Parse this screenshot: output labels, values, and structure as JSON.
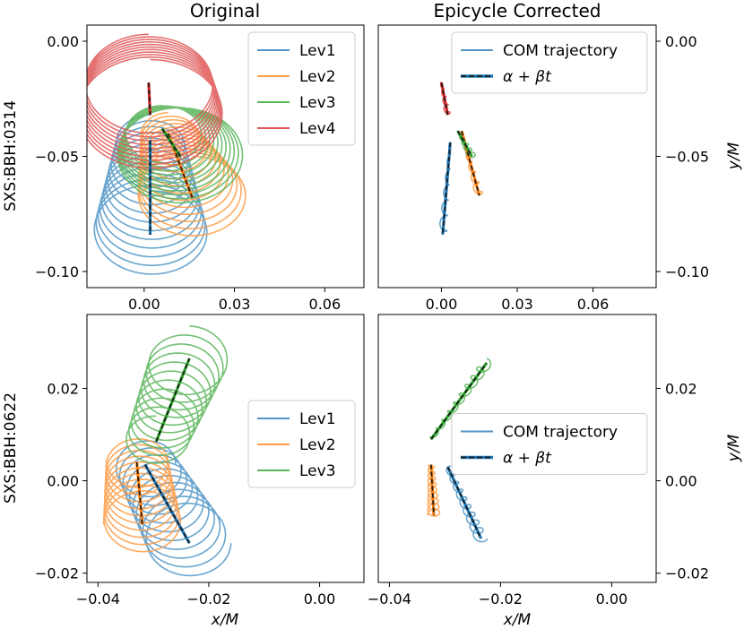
{
  "colors": {
    "lev1": "#1f77b4",
    "lev2": "#ff7f0e",
    "lev3": "#2ca02c",
    "lev4": "#d62728",
    "dash": "#1a1a1a"
  },
  "column_titles": [
    "Original",
    "Epicycle Corrected"
  ],
  "row_labels": [
    "SXS:BBH:0314",
    "SXS:BBH:0622"
  ],
  "chart_data": [
    {
      "id": "p00",
      "type": "line",
      "title": "Original",
      "ylabel": "SXS:BBH:0314",
      "xlabel": "",
      "xlim": [
        -0.019,
        0.073
      ],
      "ylim": [
        -0.107,
        0.007
      ],
      "xticks": [
        0.0,
        0.03,
        0.06
      ],
      "xtick_labels": [
        "0.00",
        "0.03",
        "0.06"
      ],
      "yticks": [
        0.0,
        -0.05,
        -0.1
      ],
      "ytick_labels": [
        "0.00",
        "−0.05",
        "−0.10"
      ],
      "ytick_side": "left",
      "legend": {
        "entries": [
          "Lev1",
          "Lev2",
          "Lev3",
          "Lev4"
        ],
        "placement": "upper-right",
        "style": "solid"
      },
      "series": [
        {
          "name": "Lev1",
          "color": "lev1",
          "kind": "loops",
          "start": [
            0.002,
            -0.043
          ],
          "end": [
            0.002,
            -0.084
          ],
          "r0": 0.011,
          "r1": 0.019,
          "turns": 13,
          "phase": 1.5708
        },
        {
          "name": "Lev2",
          "color": "lev2",
          "kind": "loops",
          "start": [
            0.008,
            -0.04
          ],
          "end": [
            0.016,
            -0.068
          ],
          "r0": 0.009,
          "r1": 0.018,
          "turns": 12,
          "phase": 1.5708
        },
        {
          "name": "Lev3",
          "color": "lev3",
          "kind": "loops",
          "start": [
            0.006,
            -0.04
          ],
          "end": [
            0.012,
            -0.05
          ],
          "r0": 0.012,
          "r1": 0.021,
          "turns": 11,
          "phase": 1.5708
        },
        {
          "name": "Lev4",
          "color": "lev4",
          "kind": "loops",
          "start": [
            0.0015,
            -0.018
          ],
          "end": [
            0.002,
            -0.032
          ],
          "r0": 0.021,
          "r1": 0.024,
          "turns": 10,
          "phase": 1.5708
        },
        {
          "name": "Lev1 fit",
          "color": "lev1",
          "kind": "fit",
          "points": [
            [
              0.002,
              -0.043
            ],
            [
              0.002,
              -0.084
            ]
          ]
        },
        {
          "name": "Lev2 fit",
          "color": "lev2",
          "kind": "fit",
          "points": [
            [
              0.008,
              -0.04
            ],
            [
              0.016,
              -0.068
            ]
          ]
        },
        {
          "name": "Lev3 fit",
          "color": "lev3",
          "kind": "fit",
          "points": [
            [
              0.006,
              -0.038
            ],
            [
              0.012,
              -0.05
            ]
          ]
        },
        {
          "name": "Lev4 fit",
          "color": "lev4",
          "kind": "fit",
          "points": [
            [
              0.0015,
              -0.018
            ],
            [
              0.002,
              -0.032
            ]
          ]
        }
      ]
    },
    {
      "id": "p01",
      "type": "line",
      "title": "Epicycle Corrected",
      "ylabel": "y/M",
      "xlabel": "",
      "xlim": [
        -0.025,
        0.085
      ],
      "ylim": [
        -0.107,
        0.007
      ],
      "xticks": [
        0.0,
        0.03,
        0.06
      ],
      "xtick_labels": [
        "0.00",
        "0.03",
        "0.06"
      ],
      "yticks": [
        0.0,
        -0.05,
        -0.1
      ],
      "ytick_labels": [
        "0.00",
        "−0.05",
        "−0.10"
      ],
      "ytick_side": "right",
      "legend": {
        "entries": [
          "COM trajectory",
          "α + βt"
        ],
        "placement": "upper-right",
        "style": "com"
      },
      "series": [
        {
          "name": "Lev1",
          "color": "lev1",
          "kind": "loops",
          "start": [
            0.0035,
            -0.044
          ],
          "end": [
            0.0005,
            -0.084
          ],
          "r0": 0.0003,
          "r1": 0.0016,
          "turns": 6,
          "phase": 1.5708
        },
        {
          "name": "Lev2",
          "color": "lev2",
          "kind": "loops",
          "start": [
            0.008,
            -0.04
          ],
          "end": [
            0.015,
            -0.067
          ],
          "r0": 0.0003,
          "r1": 0.0016,
          "turns": 6,
          "phase": 1.5708
        },
        {
          "name": "Lev3",
          "color": "lev3",
          "kind": "loops",
          "start": [
            0.0065,
            -0.039
          ],
          "end": [
            0.012,
            -0.05
          ],
          "r0": 0.0003,
          "r1": 0.0017,
          "turns": 5,
          "phase": 1.5708
        },
        {
          "name": "Lev4",
          "color": "lev4",
          "kind": "loops",
          "start": [
            0.0,
            -0.018
          ],
          "end": [
            0.0025,
            -0.032
          ],
          "r0": 0.0004,
          "r1": 0.0012,
          "turns": 4,
          "phase": 1.5708
        },
        {
          "name": "Lev1 fit",
          "color": "lev1",
          "kind": "fit",
          "points": [
            [
              0.0035,
              -0.044
            ],
            [
              0.0005,
              -0.084
            ]
          ]
        },
        {
          "name": "Lev2 fit",
          "color": "lev2",
          "kind": "fit",
          "points": [
            [
              0.008,
              -0.039
            ],
            [
              0.015,
              -0.067
            ]
          ]
        },
        {
          "name": "Lev3 fit",
          "color": "lev3",
          "kind": "fit",
          "points": [
            [
              0.0065,
              -0.039
            ],
            [
              0.012,
              -0.05
            ]
          ]
        },
        {
          "name": "Lev4 fit",
          "color": "lev4",
          "kind": "fit",
          "points": [
            [
              0.0,
              -0.018
            ],
            [
              0.0025,
              -0.032
            ]
          ]
        }
      ]
    },
    {
      "id": "p10",
      "type": "line",
      "title": "",
      "ylabel": "SXS:BBH:0622",
      "xlabel": "x/M",
      "xlim": [
        -0.042,
        0.008
      ],
      "ylim": [
        -0.022,
        0.036
      ],
      "xticks": [
        -0.04,
        -0.02,
        0.0
      ],
      "xtick_labels": [
        "−0.04",
        "−0.02",
        "0.00"
      ],
      "yticks": [
        0.02,
        0.0,
        -0.02
      ],
      "ytick_labels": [
        "0.02",
        "0.00",
        "−0.02"
      ],
      "ytick_side": "left",
      "legend": {
        "entries": [
          "Lev1",
          "Lev2",
          "Lev3"
        ],
        "placement": "center-right",
        "style": "solid"
      },
      "series": [
        {
          "name": "Lev1",
          "color": "lev1",
          "kind": "loops",
          "start": [
            -0.0315,
            0.0035
          ],
          "end": [
            -0.0235,
            -0.0135
          ],
          "r0": 0.0055,
          "r1": 0.0075,
          "turns": 10,
          "phase": 0.0
        },
        {
          "name": "Lev2",
          "color": "lev2",
          "kind": "loops",
          "start": [
            -0.033,
            0.0045
          ],
          "end": [
            -0.032,
            -0.0095
          ],
          "r0": 0.0055,
          "r1": 0.007,
          "turns": 10,
          "phase": 3.1416
        },
        {
          "name": "Lev3",
          "color": "lev3",
          "kind": "loops",
          "start": [
            -0.0295,
            0.0085
          ],
          "end": [
            -0.0235,
            0.0265
          ],
          "r0": 0.0055,
          "r1": 0.007,
          "turns": 10,
          "phase": 1.5708
        },
        {
          "name": "Lev1 fit",
          "color": "lev1",
          "kind": "fit",
          "points": [
            [
              -0.0315,
              0.0035
            ],
            [
              -0.0235,
              -0.0135
            ]
          ]
        },
        {
          "name": "Lev2 fit",
          "color": "lev2",
          "kind": "fit",
          "points": [
            [
              -0.033,
              0.004
            ],
            [
              -0.032,
              -0.0095
            ]
          ]
        },
        {
          "name": "Lev3 fit",
          "color": "lev3",
          "kind": "fit",
          "points": [
            [
              -0.0295,
              0.0085
            ],
            [
              -0.0235,
              0.0265
            ]
          ]
        }
      ]
    },
    {
      "id": "p11",
      "type": "line",
      "title": "",
      "ylabel": "y/M",
      "xlabel": "x/M",
      "xlim": [
        -0.042,
        0.008
      ],
      "ylim": [
        -0.022,
        0.036
      ],
      "xticks": [
        -0.04,
        -0.02,
        0.0
      ],
      "xtick_labels": [
        "−0.04",
        "−0.02",
        "0.00"
      ],
      "yticks": [
        0.02,
        0.0,
        -0.02
      ],
      "ytick_labels": [
        "0.02",
        "0.00",
        "−0.02"
      ],
      "ytick_side": "right",
      "legend": {
        "entries": [
          "COM trajectory",
          "α + βt"
        ],
        "placement": "center-right",
        "style": "com"
      },
      "series": [
        {
          "name": "Lev1",
          "color": "lev1",
          "kind": "loops",
          "start": [
            -0.0295,
            0.003
          ],
          "end": [
            -0.0235,
            -0.0125
          ],
          "r0": 0.0005,
          "r1": 0.0011,
          "turns": 9,
          "phase": 0.0
        },
        {
          "name": "Lev2",
          "color": "lev2",
          "kind": "loops",
          "start": [
            -0.0325,
            0.0035
          ],
          "end": [
            -0.032,
            -0.0075
          ],
          "r0": 0.0005,
          "r1": 0.0011,
          "turns": 9,
          "phase": 3.1416
        },
        {
          "name": "Lev3",
          "color": "lev3",
          "kind": "loops",
          "start": [
            -0.0325,
            0.009
          ],
          "end": [
            -0.0225,
            0.0255
          ],
          "r0": 0.0004,
          "r1": 0.001,
          "turns": 9,
          "phase": 1.5708
        },
        {
          "name": "Lev1 fit",
          "color": "lev1",
          "kind": "fit",
          "points": [
            [
              -0.0295,
              0.003
            ],
            [
              -0.0235,
              -0.0125
            ]
          ]
        },
        {
          "name": "Lev2 fit",
          "color": "lev2",
          "kind": "fit",
          "points": [
            [
              -0.0325,
              0.0035
            ],
            [
              -0.032,
              -0.0075
            ]
          ]
        },
        {
          "name": "Lev3 fit",
          "color": "lev3",
          "kind": "fit",
          "points": [
            [
              -0.0325,
              0.009
            ],
            [
              -0.0225,
              0.0255
            ]
          ]
        }
      ]
    }
  ]
}
